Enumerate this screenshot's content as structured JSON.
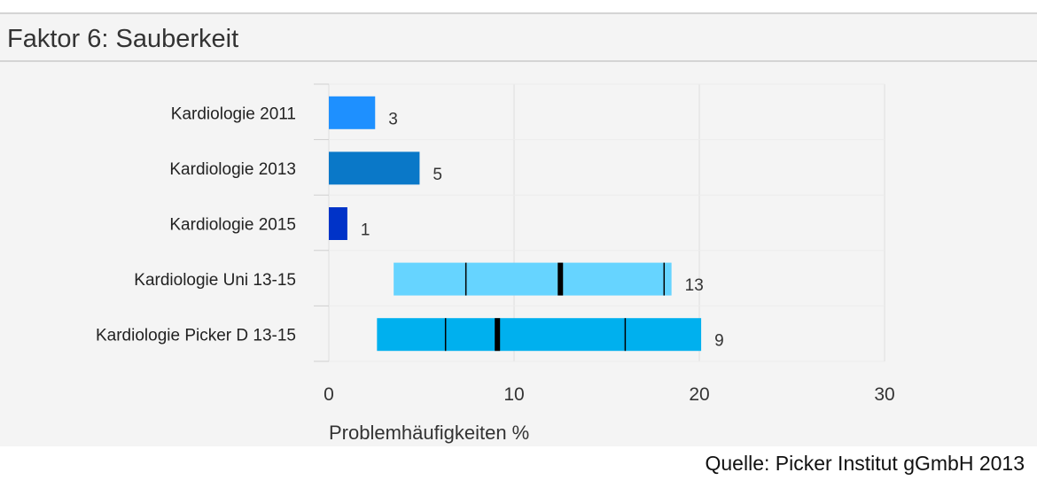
{
  "title": "Faktor 6: Sauberkeit",
  "source": "Quelle: Picker Institut gGmbH 2013",
  "chart_data": {
    "type": "bar",
    "orientation": "horizontal",
    "xlabel": "Problemhäufigkeiten %",
    "xlim": [
      0,
      30
    ],
    "xticks": [
      0,
      10,
      20,
      30
    ],
    "grid": true,
    "bars": [
      {
        "label": "Kardiologie 2011",
        "value": 3,
        "start": 0,
        "end": 2.5,
        "color": "#1e90ff"
      },
      {
        "label": "Kardiologie 2013",
        "value": 5,
        "start": 0,
        "end": 4.9,
        "color": "#0a78c8"
      },
      {
        "label": "Kardiologie 2015",
        "value": 1,
        "start": 0,
        "end": 1.0,
        "color": "#0033c8"
      }
    ],
    "ranges": [
      {
        "label": "Kardiologie Uni 13-15",
        "value": 13,
        "start": 3.5,
        "end": 18.5,
        "markers": [
          7.4,
          18.1
        ],
        "median": 12.5,
        "color": "#66d4ff"
      },
      {
        "label": "Kardiologie Picker D 13-15",
        "value": 9,
        "start": 2.6,
        "end": 20.1,
        "markers": [
          6.3,
          16.0
        ],
        "median": 9.1,
        "color": "#00b0ee"
      }
    ]
  }
}
